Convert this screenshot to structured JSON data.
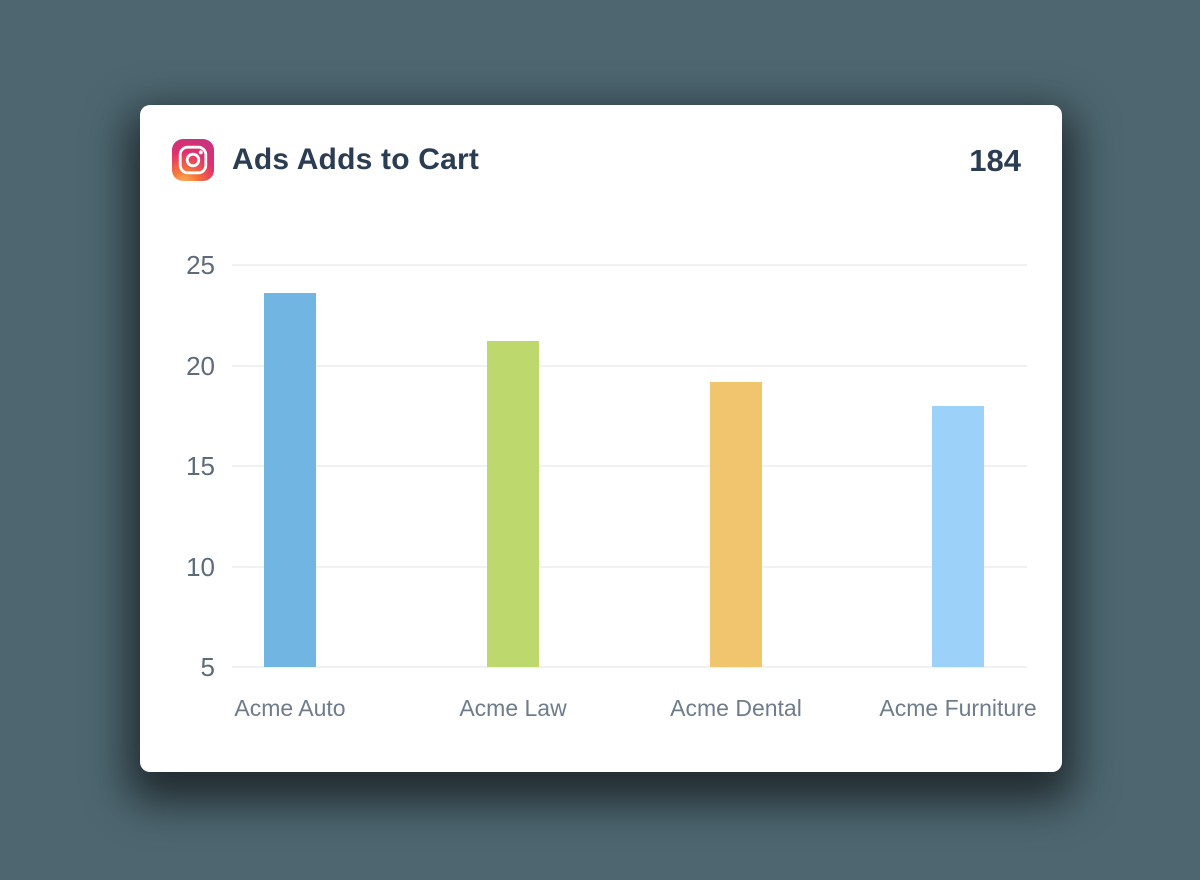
{
  "page": {
    "background_color": "#4d6670"
  },
  "card": {
    "title": "Ads Adds to Cart",
    "total": "184",
    "icon": "instagram-icon",
    "title_color": "#2b3d52",
    "background_color": "#ffffff"
  },
  "chart_data": {
    "type": "bar",
    "title": "Ads Adds to Cart",
    "categories": [
      "Acme Auto",
      "Acme Law",
      "Acme Dental",
      "Acme Furniture"
    ],
    "values": [
      23.6,
      21.2,
      19.2,
      18
    ],
    "bar_colors": [
      "#71b6e3",
      "#bdd96d",
      "#f1c46e",
      "#9cd2f9"
    ],
    "y_ticks": [
      25,
      20,
      15,
      10,
      5
    ],
    "ylim": [
      5,
      25
    ],
    "xlabel": "",
    "ylabel": "",
    "grid": "horizontal-only",
    "gridline_color": "#f1f1f1",
    "legend": "none",
    "tick_label_color": "#5d6c7b",
    "category_label_color": "#6e7c8b"
  }
}
